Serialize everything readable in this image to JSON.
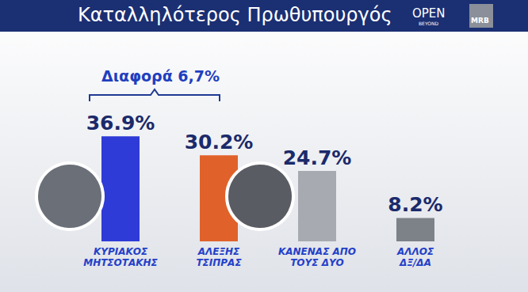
{
  "chart_data": {
    "type": "bar",
    "title": "Καταλληλότερος Πρωθυπουργός",
    "annotation": "Διαφορά 6,7%",
    "logos": [
      "OPEN",
      "BEYOND",
      "MRB"
    ],
    "categories": [
      "ΚΥΡΙΑΚΟΣ\nΜΗΤΣΟΤΑΚΗΣ",
      "ΑΛΕΞΗΣ\nΤΣΙΠΡΑΣ",
      "ΚΑΝΕΝΑΣ ΑΠΟ\nΤΟΥΣ ΔΥΟ",
      "ΑΛΛΟΣ\nΔΞ/ΔΑ"
    ],
    "values": [
      36.9,
      30.2,
      24.7,
      8.2
    ],
    "value_labels": [
      "36.9%",
      "30.2%",
      "24.7%",
      "8.2%"
    ],
    "colors": [
      "#2f3bd6",
      "#e0622a",
      "#a7abb1",
      "#7d8289"
    ],
    "ylim": [
      0,
      50
    ],
    "grid": false,
    "data_labels": true,
    "tick_labels": "x"
  }
}
